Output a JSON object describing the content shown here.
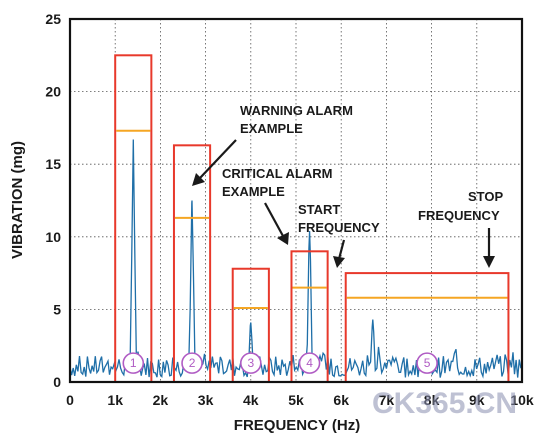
{
  "chart_data": {
    "type": "line",
    "xlabel": "FREQUENCY (Hz)",
    "ylabel": "VIBRATION (mg)",
    "xlim": [
      0,
      10000
    ],
    "ylim": [
      0,
      25
    ],
    "x_ticks": [
      0,
      1000,
      2000,
      3000,
      4000,
      5000,
      6000,
      7000,
      8000,
      9000,
      10000
    ],
    "x_tick_labels": [
      "0",
      "1k",
      "2k",
      "3k",
      "4k",
      "5k",
      "6k",
      "7k",
      "8k",
      "9k",
      "10k"
    ],
    "y_ticks": [
      0,
      5,
      10,
      15,
      20,
      25
    ],
    "y_tick_labels": [
      "0",
      "5",
      "10",
      "15",
      "20",
      "25"
    ],
    "grid": true,
    "line_color": "#1f6fa8",
    "band_outline_color": "#e8392b",
    "warning_line_color": "#f5a623",
    "bands": [
      {
        "id": "1",
        "x_start": 1000,
        "x_stop": 1800,
        "critical": 22.5,
        "warning": 17.3
      },
      {
        "id": "2",
        "x_start": 2300,
        "x_stop": 3100,
        "critical": 16.3,
        "warning": 11.3
      },
      {
        "id": "3",
        "x_start": 3600,
        "x_stop": 4400,
        "critical": 7.8,
        "warning": 5.1
      },
      {
        "id": "4",
        "x_start": 4900,
        "x_stop": 5700,
        "critical": 9.0,
        "warning": 6.5
      },
      {
        "id": "5",
        "x_start": 6100,
        "x_stop": 9700,
        "critical": 7.5,
        "warning": 5.8
      }
    ],
    "peaks": [
      {
        "x": 1400,
        "y": 16.7
      },
      {
        "x": 2700,
        "y": 12.5
      },
      {
        "x": 4000,
        "y": 4.1
      },
      {
        "x": 5300,
        "y": 10.4
      },
      {
        "x": 6700,
        "y": 4.3
      }
    ],
    "annotations": [
      {
        "id": "warning",
        "lines": [
          "WARNING ALARM",
          "EXAMPLE"
        ]
      },
      {
        "id": "critical",
        "lines": [
          "CRITICAL ALARM",
          "EXAMPLE"
        ]
      },
      {
        "id": "start",
        "lines": [
          "START",
          "FREQUENCY"
        ]
      },
      {
        "id": "stop",
        "lines": [
          "STOP",
          "FREQUENCY"
        ]
      }
    ]
  },
  "watermark": "CK365.CN"
}
